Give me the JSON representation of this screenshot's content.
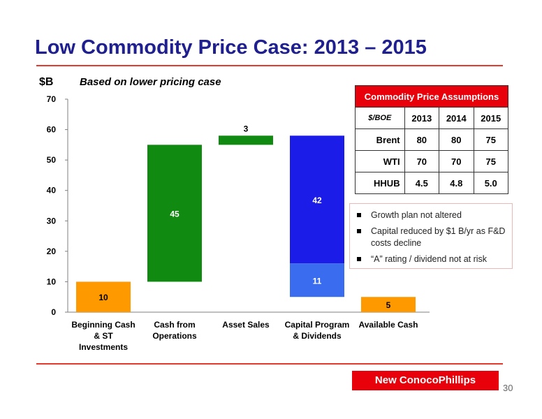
{
  "slide": {
    "title": "Low Commodity Price Case: 2013 – 2015",
    "unit_label": "$B",
    "subtitle": "Based on lower pricing case",
    "page_number": "30",
    "brand_label": "New ConocoPhillips"
  },
  "assumptions": {
    "header": "Commodity Price Assumptions",
    "unit": "$/BOE",
    "years": [
      "2013",
      "2014",
      "2015"
    ],
    "rows": [
      {
        "label": "Brent",
        "values": [
          "80",
          "80",
          "75"
        ]
      },
      {
        "label": "WTI",
        "values": [
          "70",
          "70",
          "75"
        ]
      },
      {
        "label": "HHUB",
        "values": [
          "4.5",
          "4.8",
          "5.0"
        ]
      }
    ]
  },
  "bullets": [
    "Growth plan not altered",
    "Capital reduced by $1 B/yr as F&D costs decline",
    "“A” rating / dividend not at risk"
  ],
  "chart_data": {
    "type": "bar",
    "subtype": "waterfall",
    "ylim": [
      0,
      70
    ],
    "yticks": [
      0,
      10,
      20,
      30,
      40,
      50,
      60,
      70
    ],
    "ylabel": "$B",
    "grid": false,
    "categories": [
      {
        "label": [
          "Beginning Cash",
          "& ST",
          "Investments"
        ]
      },
      {
        "label": [
          "Cash from",
          "Operations"
        ]
      },
      {
        "label": [
          "Asset Sales"
        ]
      },
      {
        "label": [
          "Capital Program",
          "& Dividends"
        ]
      },
      {
        "label": [
          "Available Cash"
        ]
      }
    ],
    "segments": [
      {
        "category": 0,
        "start": 0,
        "end": 10,
        "label": "10",
        "color": "#ff9900"
      },
      {
        "category": 1,
        "start": 10,
        "end": 55,
        "label": "45",
        "color": "#108a10"
      },
      {
        "category": 2,
        "start": 55,
        "end": 58,
        "label": "3",
        "color": "#108a10",
        "label_above": true
      },
      {
        "category": 3,
        "start": 16,
        "end": 58,
        "label": "42",
        "color": "#1c1ce8"
      },
      {
        "category": 3,
        "start": 5,
        "end": 16,
        "label": "11",
        "color": "#3a6cf0"
      },
      {
        "category": 4,
        "start": 0,
        "end": 5,
        "label": "5",
        "color": "#ff9900"
      }
    ]
  }
}
